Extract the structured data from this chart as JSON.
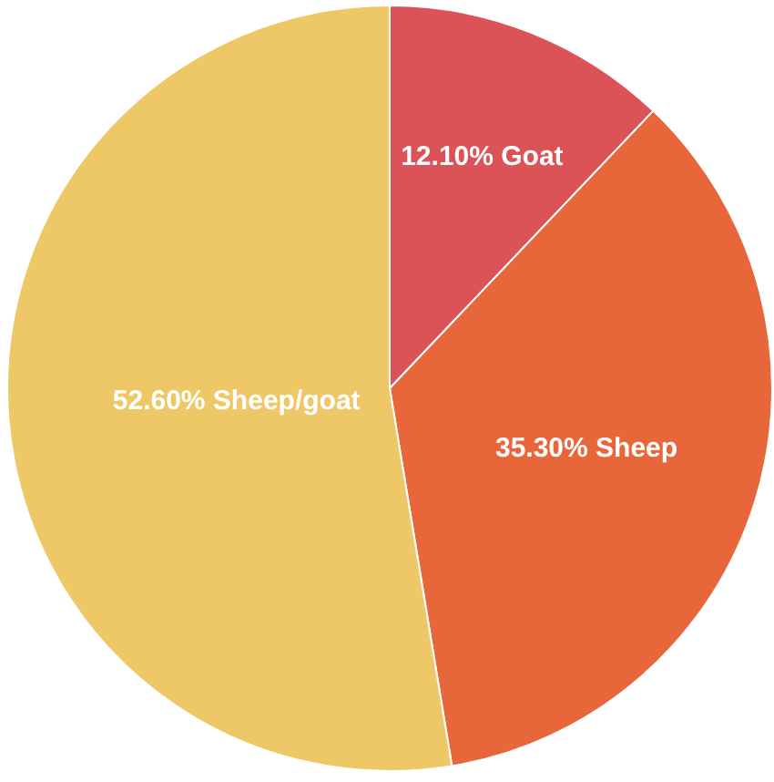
{
  "chart_data": {
    "type": "pie",
    "categories": [
      "Goat",
      "Sheep",
      "Sheep/goat"
    ],
    "values": [
      12.1,
      35.3,
      52.6
    ],
    "value_labels": [
      "12.10%",
      "35.30%",
      "52.60%"
    ],
    "colors": [
      "#db5257",
      "#e8673a",
      "#eec866"
    ],
    "legend": false
  }
}
